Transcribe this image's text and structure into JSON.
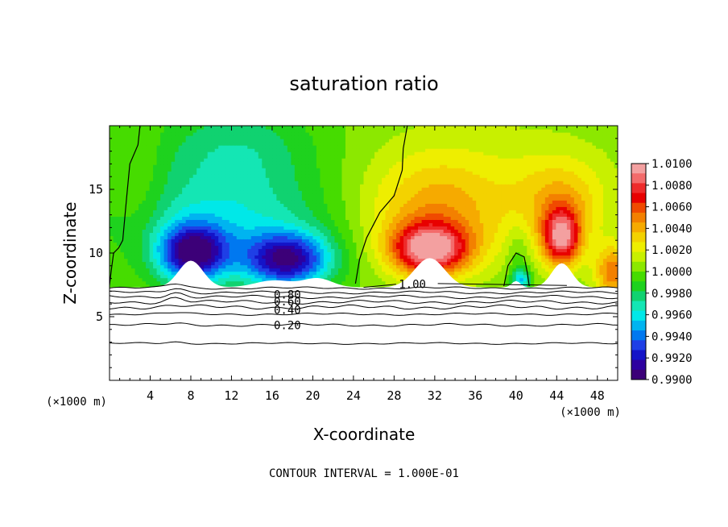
{
  "chart_data": {
    "type": "heatmap",
    "title": "saturation ratio",
    "xlabel": "X-coordinate",
    "ylabel": "Z-coordinate",
    "x_unit_left": "(×1000 m)",
    "x_unit_right": "(×1000 m)",
    "footer": "CONTOUR INTERVAL = 1.000E-01",
    "xlim": [
      0,
      50
    ],
    "ylim": [
      0,
      20
    ],
    "x_ticks": [
      4,
      8,
      12,
      16,
      20,
      24,
      28,
      32,
      36,
      40,
      44,
      48
    ],
    "y_ticks": [
      5,
      10,
      15
    ],
    "colorbar": {
      "range": [
        0.99,
        1.01
      ],
      "tick_labels": [
        "1.0100",
        "1.0080",
        "1.0060",
        "1.0040",
        "1.0020",
        "1.0000",
        "0.9980",
        "0.9960",
        "0.9940",
        "0.9920",
        "0.9900"
      ],
      "colors": [
        "#f3a0a0",
        "#f36b6b",
        "#ee2b2b",
        "#e80000",
        "#f04a00",
        "#f38000",
        "#f6aa00",
        "#f3d200",
        "#eeee00",
        "#c8f000",
        "#8ce800",
        "#46dc00",
        "#1ed21e",
        "#10d270",
        "#14e6b4",
        "#00e8e8",
        "#00b4f0",
        "#0078f0",
        "#1f3fe6",
        "#1414c8",
        "#2d00a0",
        "#3c0078"
      ]
    },
    "contours": [
      {
        "label": "1.00",
        "value": 1.0
      },
      {
        "label": "0.80",
        "value": 0.8
      },
      {
        "label": "0.60",
        "value": 0.6
      },
      {
        "label": "0.40",
        "value": 0.4
      },
      {
        "label": "0.20",
        "value": 0.2
      }
    ],
    "fields": {
      "ground_z": 7.3,
      "maxima": [
        {
          "x": 31.5,
          "z": 10.5,
          "value": 1.0085
        },
        {
          "x": 44.5,
          "z": 11.5,
          "value": 1.0075
        },
        {
          "x": 49.0,
          "z": 8.0,
          "value": 1.006
        }
      ],
      "minima": [
        {
          "x": 8.0,
          "z": 10.0,
          "value": 0.9915
        },
        {
          "x": 18.0,
          "z": 9.5,
          "value": 0.9918
        },
        {
          "x": 40.5,
          "z": 7.8,
          "value": 0.9955
        }
      ]
    }
  }
}
